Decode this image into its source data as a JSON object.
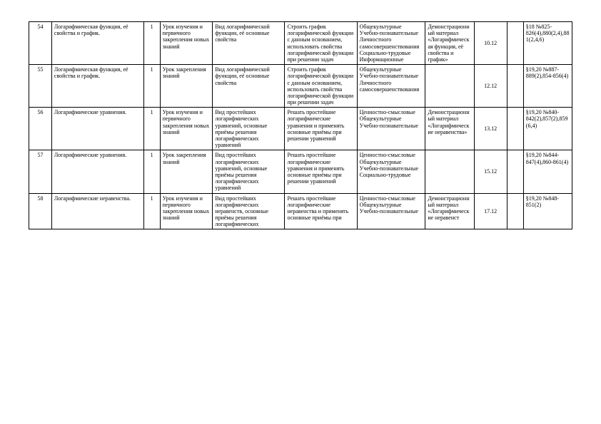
{
  "table": {
    "rows": [
      {
        "num": "54",
        "topic": "Логарифмическая функция, её свойства и график.",
        "hours": "1",
        "lesson_type": "Урок изучения и первичного закрепления новых знаний",
        "content": "Вид логарифмической функции, её основные свойства",
        "activity": "Строить график логарифмической функции с данным основанием, использовать свойства логарифмической функции при решении задач",
        "competence": "Общекультурные Учебно-познавательные Личностного самосовершенствования Социально-трудовые Информационные",
        "material": "Демонстрационный материал «Логарифмическая функция, её свойства и график»",
        "date": "10.12",
        "spare": "",
        "hw": "§18 №825-826(4),880(2,4),881(2,4,6)"
      },
      {
        "num": "55",
        "topic": "Логарифмическая функция, её свойства и график.",
        "hours": "1",
        "lesson_type": "Урок закрепления знаний",
        "content": "Вид логарифмической функции, её основные свойства",
        "activity": "Строить график логарифмической функции с данным основанием, использовать свойства логарифмической функции при решении задач",
        "competence": "Общекультурные Учебно-познавательные Личностного самосовершенствования",
        "material": "",
        "date": "12.12",
        "spare": "",
        "hw": "§19,20 №887-889(2),854-856(4)"
      },
      {
        "num": "56",
        "topic": "Логарифмические уравнения.",
        "hours": "1",
        "lesson_type": "Урок изучения и первичного закрепления новых знаний",
        "content": "Вид простейших логарифмических уравнений, основные приёмы решения логарифмических уравнений",
        "activity": "Решать простейшие логарифмические уравнения и применять основные приёмы при решении уравнений",
        "competence": "Ценностно-смысловые Общекультурные Учебно-познавательные",
        "material": "Демонстрационный материал «Логарифмические неравенства»",
        "date": "13.12",
        "spare": "",
        "hw": "§19,20 №840-842(2),857(2),859(6,4)"
      },
      {
        "num": "57",
        "topic": "Логарифмические уравнения.",
        "hours": "1",
        "lesson_type": "Урок закрепления знаний",
        "content": "Вид простейших логарифмических уравнений, основные приёмы решения логарифмических уравнений",
        "activity": "Решать простейшие логарифмические уравнения и применять основные приёмы при решении уравнений",
        "competence": "Ценностно-смысловые Общекультурные Учебно-познавательные Социально-трудовые",
        "material": "",
        "date": "15.12",
        "spare": "",
        "hw": "§19,20 №844-847(4),860-861(4)"
      },
      {
        "num": "58",
        "topic": "Логарифмические неравенства.",
        "hours": "1",
        "lesson_type": "Урок изучения и первичного закрепления новых знаний",
        "content": "Вид простейших логарифмических неравенств, основные приёмы решения логарифмических",
        "activity": "Решать простейшие логарифмические неравенства и применять основные приёмы при",
        "competence": "Ценностно-смысловые Общекультурные Учебно-познавательные",
        "material": "Демонстрационный материал «Логарифмические неравенст",
        "date": "17.12",
        "spare": "",
        "hw": "§19,20 №848-851(2)"
      }
    ]
  }
}
